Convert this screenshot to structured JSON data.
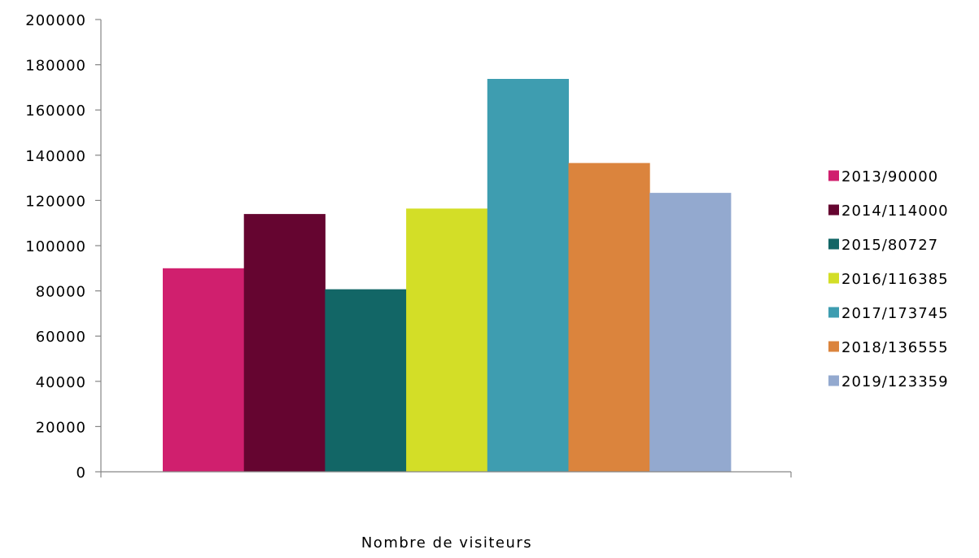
{
  "chart_data": {
    "type": "bar",
    "title": "",
    "xlabel": "Nombre de visiteurs",
    "ylabel": "",
    "ylim": [
      0,
      200000
    ],
    "ytick_step": 20000,
    "yticks": [
      "0",
      "20000",
      "40000",
      "60000",
      "80000",
      "100000",
      "120000",
      "140000",
      "160000",
      "180000",
      "200000"
    ],
    "categories": [
      "Nombre de visiteurs"
    ],
    "legend_position": "right",
    "grid": false,
    "series": [
      {
        "name": "2013/90000",
        "values": [
          90000
        ],
        "color": "#D01F6E"
      },
      {
        "name": "2014/114000",
        "values": [
          114000
        ],
        "color": "#650530"
      },
      {
        "name": "2015/80727",
        "values": [
          80727
        ],
        "color": "#126666"
      },
      {
        "name": "2016/116385",
        "values": [
          116385
        ],
        "color": "#D3DE27"
      },
      {
        "name": "2017/173745",
        "values": [
          173745
        ],
        "color": "#3E9DB0"
      },
      {
        "name": "2018/136555",
        "values": [
          136555
        ],
        "color": "#DB843D"
      },
      {
        "name": "2019/123359",
        "values": [
          123359
        ],
        "color": "#93A9CF"
      }
    ]
  }
}
